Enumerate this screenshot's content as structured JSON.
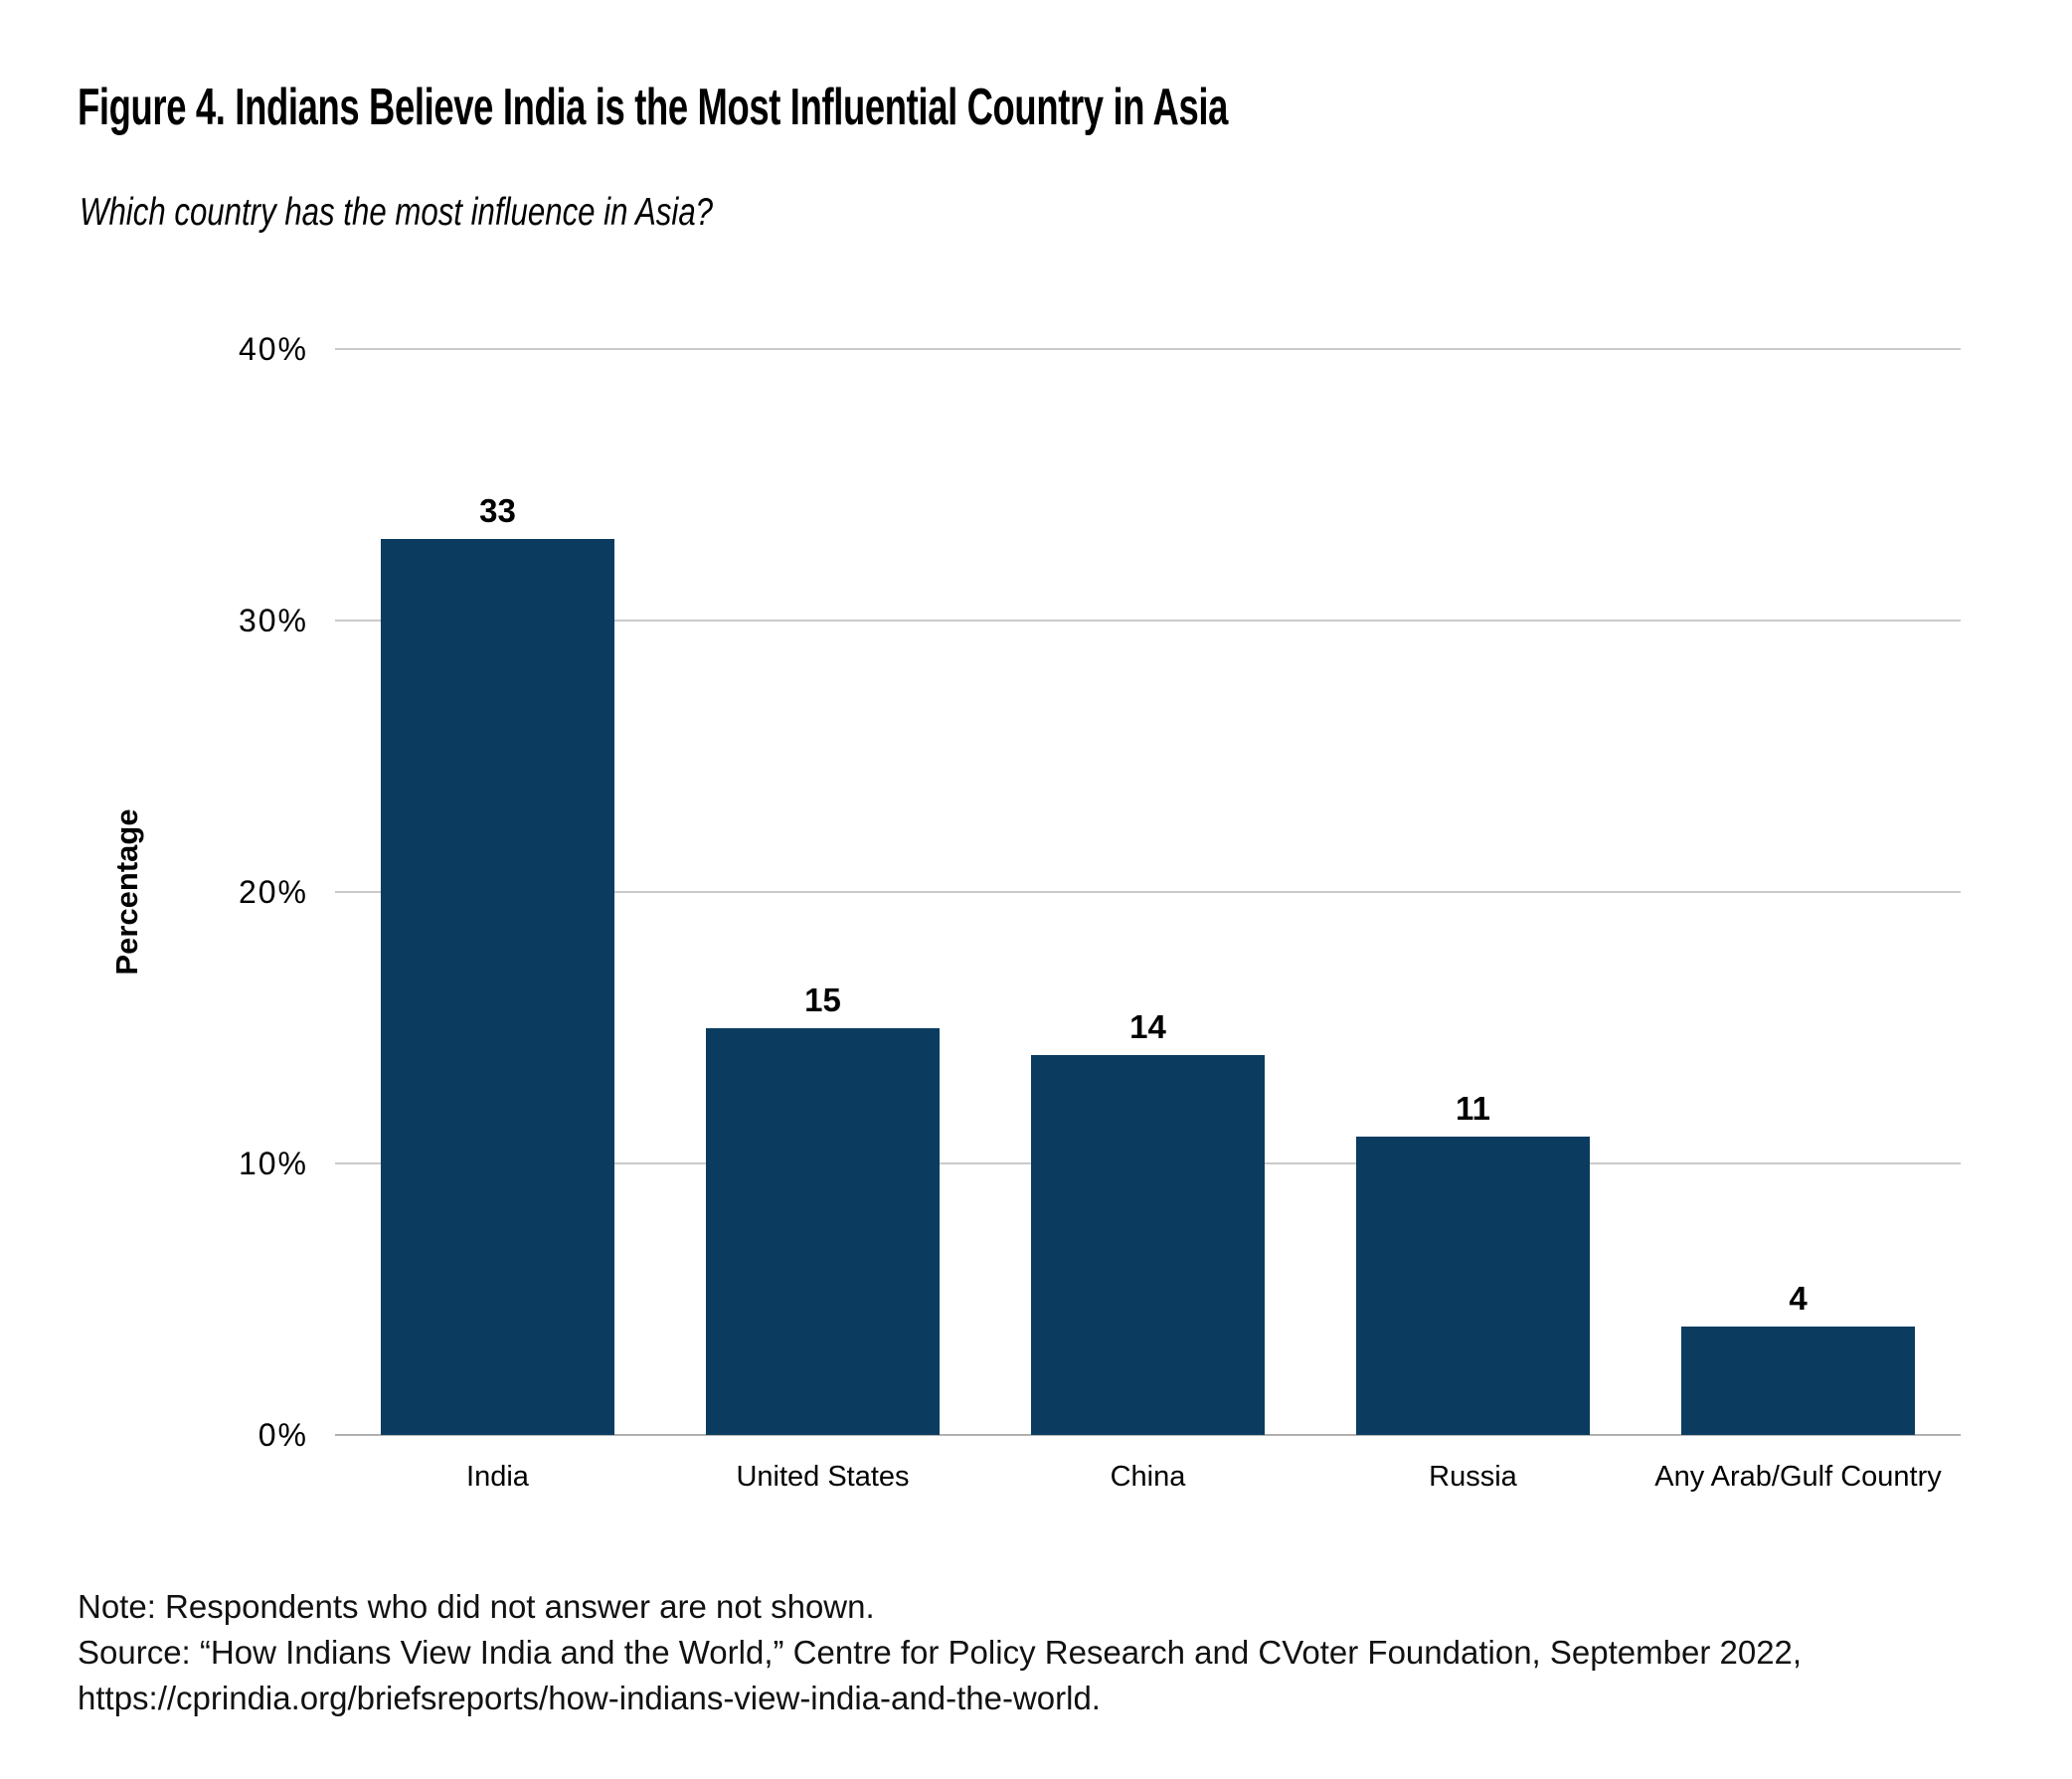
{
  "figure": {
    "title": "Figure 4. Indians Believe India is the Most Influential Country in Asia",
    "subtitle": "Which country has the most influence in Asia?"
  },
  "chart_data": {
    "type": "bar",
    "title": "Figure 4. Indians Believe India is the Most Influential Country in Asia",
    "subtitle": "Which country has the most influence in Asia?",
    "categories": [
      "India",
      "United States",
      "China",
      "Russia",
      "Any Arab/Gulf Country"
    ],
    "values": [
      33,
      15,
      14,
      11,
      4
    ],
    "data_labels": [
      "33",
      "15",
      "14",
      "11",
      "4"
    ],
    "xlabel": "",
    "ylabel": "Percentage",
    "ylim": [
      0,
      40
    ],
    "yticks": [
      0,
      10,
      20,
      30,
      40
    ],
    "ytick_labels": [
      "0%",
      "10%",
      "20%",
      "30%",
      "40%"
    ],
    "grid": true,
    "legend": false
  },
  "notes": {
    "note": "Note: Respondents who did not answer are not shown.",
    "source": "Source: “How Indians View India and the World,” Centre for Policy Research and CVoter Foundation, September 2022,",
    "url": "https://cprindia.org/briefsreports/how-indians-view-india-and-the-world."
  },
  "colors": {
    "bar": "#0b3c60",
    "gridline": "#cacaca",
    "baseline": "#b0b0b0",
    "text": "#000000"
  }
}
